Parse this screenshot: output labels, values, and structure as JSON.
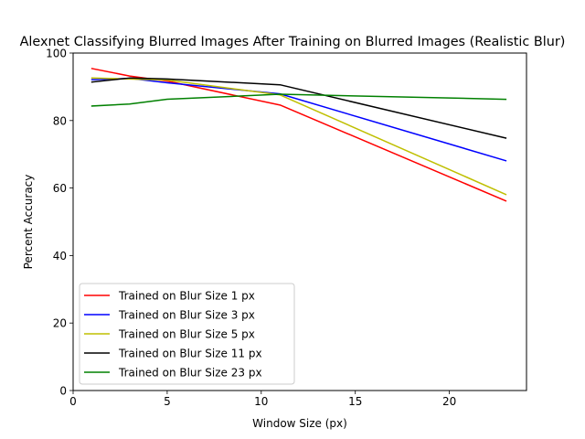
{
  "chart_data": {
    "type": "line",
    "title": "Alexnet Classifying Blurred Images After Training on Blurred Images (Realistic Blur)",
    "xlabel": "Window Size (px)",
    "ylabel": "Percent Accuracy",
    "xlim": [
      0,
      24.1
    ],
    "ylim": [
      0,
      100
    ],
    "x_ticks": [
      0,
      5,
      10,
      15,
      20
    ],
    "y_ticks": [
      0,
      20,
      40,
      60,
      80,
      100
    ],
    "grid": false,
    "legend_position": "lower-left",
    "x": [
      1,
      3,
      5,
      11,
      23
    ],
    "series": [
      {
        "name": "Trained on Blur Size 1 px",
        "color": "#ff0000",
        "values": [
          95.4,
          93.2,
          91.7,
          84.6,
          56.2
        ]
      },
      {
        "name": "Trained on Blur Size 3 px",
        "color": "#0000ff",
        "values": [
          92.1,
          92.5,
          91.2,
          87.9,
          68.1
        ]
      },
      {
        "name": "Trained on Blur Size 5 px",
        "color": "#bfbf00",
        "values": [
          92.6,
          92.3,
          92.0,
          87.6,
          58.1
        ]
      },
      {
        "name": "Trained on Blur Size 11 px",
        "color": "#000000",
        "values": [
          91.4,
          92.6,
          92.3,
          90.6,
          74.8
        ]
      },
      {
        "name": "Trained on Blur Size 23 px",
        "color": "#008000",
        "values": [
          84.3,
          84.9,
          86.3,
          87.8,
          86.3
        ]
      }
    ]
  }
}
